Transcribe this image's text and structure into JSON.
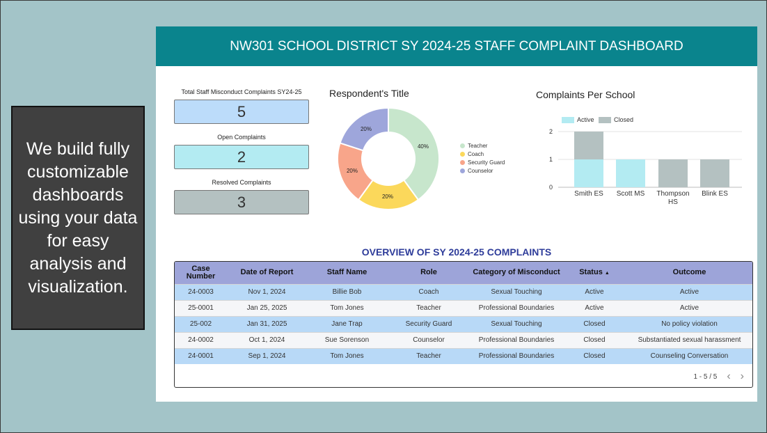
{
  "promo": {
    "text": "We build fully customizable dashboards using your data for easy analysis and visualization."
  },
  "header": {
    "title": "NW301 SCHOOL DISTRICT SY 2024-25 STAFF COMPLAINT DASHBOARD"
  },
  "kpis": [
    {
      "label": "Total Staff Misconduct Complaints SY24-25",
      "value": "5",
      "color": "#bcdcfa"
    },
    {
      "label": "Open Complaints",
      "value": "2",
      "color": "#b3ebf2"
    },
    {
      "label": "Resolved Complaints",
      "value": "3",
      "color": "#b4c1c1"
    }
  ],
  "donut": {
    "title": "Respondent's Title",
    "legend": [
      "Teacher",
      "Coach",
      "Security Guard",
      "Counselor"
    ],
    "labels": [
      "40%",
      "20%",
      "20%",
      "20%"
    ]
  },
  "bar": {
    "title": "Complaints Per School",
    "legend": [
      "Active",
      "Closed"
    ],
    "yticks": [
      "0",
      "1",
      "2"
    ],
    "categories": [
      "Smith ES",
      "Scott MS",
      "Thompson",
      "Blink ES"
    ],
    "category_line2": [
      "",
      "",
      "HS",
      ""
    ]
  },
  "chart_data": [
    {
      "type": "pie",
      "title": "Respondent's Title",
      "categories": [
        "Teacher",
        "Coach",
        "Security Guard",
        "Counselor"
      ],
      "values": [
        40,
        20,
        20,
        20
      ],
      "colors": [
        "#c7e6cc",
        "#fbd85b",
        "#f8a58a",
        "#9ea6db"
      ]
    },
    {
      "type": "bar",
      "title": "Complaints Per School",
      "categories": [
        "Smith ES",
        "Scott MS",
        "Thompson HS",
        "Blink ES"
      ],
      "series": [
        {
          "name": "Active",
          "values": [
            1,
            1,
            0,
            0
          ],
          "color": "#b3ebf2"
        },
        {
          "name": "Closed",
          "values": [
            1,
            0,
            1,
            1
          ],
          "color": "#b4c1c1"
        }
      ],
      "ylim": [
        0,
        2
      ],
      "stacked": true
    }
  ],
  "table": {
    "title": "OVERVIEW OF SY 2024-25 COMPLAINTS",
    "columns": [
      "Case Number",
      "Date of Report",
      "Staff Name",
      "Role",
      "Category of Misconduct",
      "Status",
      "Outcome"
    ],
    "sort_indicator": "▲",
    "rows": [
      [
        "24-0003",
        "Nov 1, 2024",
        "Billie Bob",
        "Coach",
        "Sexual Touching",
        "Active",
        "Active"
      ],
      [
        "25-0001",
        "Jan 25, 2025",
        "Tom Jones",
        "Teacher",
        "Professional Boundaries",
        "Active",
        "Active"
      ],
      [
        "25-002",
        "Jan 31, 2025",
        "Jane Trap",
        "Security Guard",
        "Sexual Touching",
        "Closed",
        "No policy violation"
      ],
      [
        "24-0002",
        "Oct 1, 2024",
        "Sue Sorenson",
        "Counselor",
        "Professional Boundaries",
        "Closed",
        "Substantiated sexual harassment"
      ],
      [
        "24-0001",
        "Sep 1, 2024",
        "Tom Jones",
        "Teacher",
        "Professional Boundaries",
        "Closed",
        "Counseling Conversation"
      ]
    ],
    "pagination": "1 - 5 / 5"
  }
}
